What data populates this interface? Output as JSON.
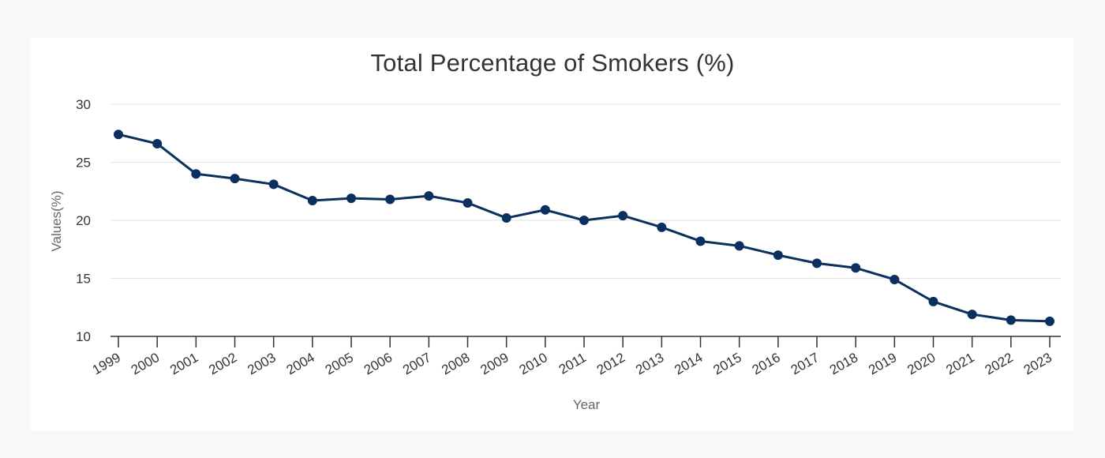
{
  "chart_data": {
    "type": "line",
    "title": "Total Percentage of Smokers (%)",
    "xlabel": "Year",
    "ylabel": "Values(%)",
    "ylim": [
      10,
      30
    ],
    "yticks": [
      10,
      15,
      20,
      25,
      30
    ],
    "grid": true,
    "categories": [
      "1999",
      "2000",
      "2001",
      "2002",
      "2003",
      "2004",
      "2005",
      "2006",
      "2007",
      "2008",
      "2009",
      "2010",
      "2011",
      "2012",
      "2013",
      "2014",
      "2015",
      "2016",
      "2017",
      "2018",
      "2019",
      "2020",
      "2021",
      "2022",
      "2023"
    ],
    "series": [
      {
        "values": [
          27.4,
          26.6,
          24.0,
          23.6,
          23.1,
          21.7,
          21.9,
          21.8,
          22.1,
          21.5,
          20.2,
          20.9,
          20.0,
          20.4,
          19.4,
          18.2,
          17.8,
          17.0,
          16.3,
          15.9,
          14.9,
          13.0,
          11.9,
          11.4,
          11.3
        ],
        "color": "#0b2f5e"
      }
    ]
  }
}
